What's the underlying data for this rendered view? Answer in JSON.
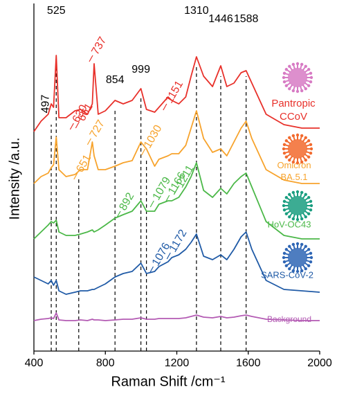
{
  "chart_data": {
    "type": "line",
    "x_label": "Raman Shift /cm⁻¹",
    "y_label": "Intensity /a.u.",
    "xlim": [
      400,
      2000
    ],
    "xticks": [
      400,
      800,
      1200,
      1600,
      2000
    ],
    "ylim": [
      0,
      500
    ],
    "x": [
      400,
      440,
      480,
      497,
      510,
      525,
      540,
      580,
      630,
      661,
      700,
      727,
      737,
      760,
      800,
      854,
      900,
      950,
      999,
      1030,
      1076,
      1100,
      1151,
      1172,
      1211,
      1250,
      1280,
      1310,
      1350,
      1400,
      1446,
      1480,
      1520,
      1560,
      1588,
      1620,
      1700,
      1800,
      1900,
      2000
    ],
    "series": [
      {
        "name": "Pantropic CCoV",
        "color": "#e8302a",
        "values": [
          317,
          332,
          342,
          357,
          352,
          427,
          337,
          337,
          347,
          349,
          342,
          357,
          415,
          342,
          347,
          362,
          357,
          362,
          379,
          349,
          345,
          352,
          367,
          362,
          357,
          367,
          397,
          425,
          397,
          382,
          412,
          382,
          387,
          402,
          405,
          387,
          342,
          327,
          322,
          322
        ]
      },
      {
        "name": "Omicron BA.5.1",
        "color": "#f7a32c",
        "values": [
          242,
          252,
          257,
          265,
          269,
          309,
          262,
          252,
          255,
          262,
          262,
          302,
          282,
          262,
          262,
          267,
          272,
          275,
          302,
          292,
          267,
          277,
          282,
          285,
          285,
          297,
          322,
          347,
          307,
          287,
          292,
          282,
          302,
          322,
          332,
          307,
          262,
          247,
          242,
          242
        ]
      },
      {
        "name": "HoV-OC43",
        "color": "#4bb848",
        "values": [
          162,
          172,
          182,
          187,
          185,
          189,
          172,
          167,
          167,
          169,
          172,
          175,
          172,
          175,
          182,
          192,
          197,
          202,
          217,
          202,
          202,
          212,
          217,
          217,
          222,
          237,
          252,
          272,
          232,
          222,
          235,
          227,
          242,
          252,
          257,
          237,
          187,
          167,
          162,
          162
        ]
      },
      {
        "name": "SARS-CoV-2",
        "color": "#1f5aa6",
        "values": [
          107,
          102,
          97,
          102,
          95,
          102,
          87,
          82,
          85,
          87,
          87,
          89,
          89,
          92,
          97,
          107,
          112,
          115,
          127,
          112,
          115,
          122,
          129,
          135,
          139,
          147,
          157,
          169,
          137,
          132,
          139,
          132,
          147,
          165,
          172,
          147,
          102,
          89,
          87,
          85
        ]
      },
      {
        "name": "Background",
        "color": "#b35ab3",
        "values": [
          44,
          46,
          47,
          48,
          47,
          55,
          45,
          44,
          44,
          45,
          44,
          46,
          45,
          45,
          44,
          45,
          46,
          46,
          48,
          46,
          46,
          47,
          47,
          47,
          47,
          48,
          50,
          52,
          49,
          48,
          50,
          48,
          49,
          51,
          52,
          50,
          46,
          45,
          44,
          44
        ]
      }
    ],
    "reference_lines": [
      497,
      525,
      651,
      854,
      999,
      1030,
      1310,
      1446,
      1588
    ],
    "peak_labels": [
      {
        "value": 497,
        "color": "#000000"
      },
      {
        "value": 525,
        "color": "#000000"
      },
      {
        "value": 854,
        "color": "#000000"
      },
      {
        "value": 999,
        "color": "#000000"
      },
      {
        "value": 1310,
        "color": "#000000"
      },
      {
        "value": 1446,
        "color": "#000000"
      },
      {
        "value": 1588,
        "color": "#000000"
      },
      {
        "value": 630,
        "color": "#e8302a"
      },
      {
        "value": 661,
        "color": "#e8302a"
      },
      {
        "value": 737,
        "color": "#e8302a"
      },
      {
        "value": 1151,
        "color": "#e8302a"
      },
      {
        "value": 651,
        "color": "#f7a32c"
      },
      {
        "value": 727,
        "color": "#f7a32c"
      },
      {
        "value": 1030,
        "color": "#f7a32c"
      },
      {
        "value": 892,
        "color": "#4bb848"
      },
      {
        "value": 1079,
        "color": "#4bb848"
      },
      {
        "value": 1166,
        "color": "#4bb848"
      },
      {
        "value": 1211,
        "color": "#4bb848"
      },
      {
        "value": 1076,
        "color": "#1f5aa6"
      },
      {
        "value": 1172,
        "color": "#1f5aa6"
      }
    ]
  }
}
